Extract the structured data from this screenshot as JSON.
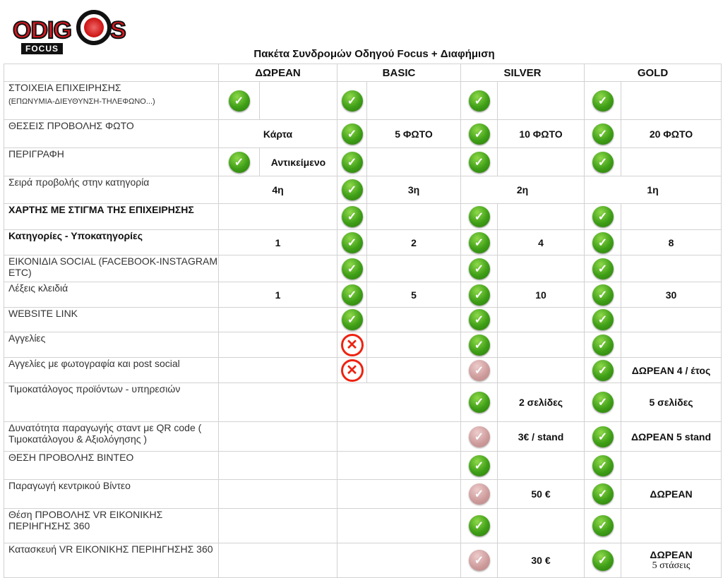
{
  "logo": {
    "text": "ODIGOS",
    "sub": "FOCUS"
  },
  "title": "Πακέτα Συνδρομών Οδηγού Focus + Διαφήμιση",
  "packages": [
    "ΔΩΡΕΑΝ",
    "BASIC",
    "SILVER",
    "GOLD"
  ],
  "icons": {
    "check": "check-circle-icon",
    "faded": "check-circle-disabled-icon",
    "cross": "x-circle-icon"
  },
  "colors": {
    "check": "#3f9f17",
    "cross": "#e21111",
    "faded": "#c99999"
  },
  "rows": [
    {
      "label": "ΣΤΟΙΧΕΙΑ ΕΠΙΧΕΙΡΗΣΗΣ",
      "sub": "(ΕΠΩΝΥΜΙΑ-ΔΙΕΥΘΥΝΣΗ-ΤΗΛΕΦΩΝΟ...)",
      "cells": [
        {
          "icon": "check",
          "value": ""
        },
        {
          "icon": "check",
          "value": ""
        },
        {
          "icon": "check",
          "value": ""
        },
        {
          "icon": "check",
          "value": ""
        }
      ]
    },
    {
      "label": "ΘΕΣΕΙΣ  ΠΡΟΒΟΛΗΣ ΦΩΤΟ",
      "cells": [
        {
          "icon": "none",
          "value": "Κάρτα"
        },
        {
          "icon": "check",
          "value": "5 ΦΩΤΟ"
        },
        {
          "icon": "check",
          "value": "10 ΦΩΤΟ"
        },
        {
          "icon": "check",
          "value": "20 ΦΩΤΟ"
        }
      ]
    },
    {
      "label": "ΠΕΡΙΓΡΑΦΗ",
      "cells": [
        {
          "icon": "check",
          "value": "Αντικείμενο"
        },
        {
          "icon": "check",
          "value": ""
        },
        {
          "icon": "check",
          "value": ""
        },
        {
          "icon": "check",
          "value": ""
        }
      ]
    },
    {
      "label": "Σειρά προβολής στην κατηγορία",
      "cells": [
        {
          "icon": "none",
          "value": "4η"
        },
        {
          "icon": "check",
          "value": "3η"
        },
        {
          "icon": "none",
          "value": "2η"
        },
        {
          "icon": "none",
          "value": "1η"
        }
      ]
    },
    {
      "label": "ΧΑΡΤΗΣ ΜΕ ΣΤΙΓΜΑ ΤΗΣ ΕΠΙΧΕΙΡΗΣΗΣ",
      "bold": true,
      "cells": [
        {
          "icon": "none",
          "value": ""
        },
        {
          "icon": "check",
          "value": ""
        },
        {
          "icon": "check",
          "value": ""
        },
        {
          "icon": "check",
          "value": ""
        }
      ]
    },
    {
      "label": "Κατηγορίες - Υποκατηγορίες",
      "bold": true,
      "cells": [
        {
          "icon": "none",
          "value": "1"
        },
        {
          "icon": "check",
          "value": "2"
        },
        {
          "icon": "check",
          "value": "4"
        },
        {
          "icon": "check",
          "value": "8"
        }
      ]
    },
    {
      "label": "ΕΙΚΟΝΙΔΙΑ SOCIAL (FACEBOOK-INSTAGRAM ETC)",
      "cells": [
        {
          "icon": "none",
          "value": ""
        },
        {
          "icon": "check",
          "value": ""
        },
        {
          "icon": "check",
          "value": ""
        },
        {
          "icon": "check",
          "value": ""
        }
      ]
    },
    {
      "label": "Λέξεις κλειδιά",
      "cells": [
        {
          "icon": "none",
          "value": "1"
        },
        {
          "icon": "check",
          "value": "5"
        },
        {
          "icon": "check",
          "value": "10"
        },
        {
          "icon": "check",
          "value": "30"
        }
      ]
    },
    {
      "label": "WEBSITE LINK",
      "cells": [
        {
          "icon": "none",
          "value": ""
        },
        {
          "icon": "check",
          "value": ""
        },
        {
          "icon": "check",
          "value": ""
        },
        {
          "icon": "check",
          "value": ""
        }
      ]
    },
    {
      "label": "Αγγελίες",
      "cells": [
        {
          "icon": "none",
          "value": ""
        },
        {
          "icon": "cross",
          "value": ""
        },
        {
          "icon": "check",
          "value": ""
        },
        {
          "icon": "check",
          "value": ""
        }
      ]
    },
    {
      "label": "Αγγελίες με φωτογραφία και post social",
      "cells": [
        {
          "icon": "none",
          "value": ""
        },
        {
          "icon": "cross",
          "value": ""
        },
        {
          "icon": "faded",
          "value": ""
        },
        {
          "icon": "check",
          "value": "ΔΩΡΕΑΝ 4 / έτος"
        }
      ]
    },
    {
      "label": "Τιμοκατάλογος προϊόντων - υπηρεσιών",
      "cells": [
        {
          "icon": "none",
          "value": ""
        },
        {
          "icon": "none",
          "value": ""
        },
        {
          "icon": "check",
          "value": "2 σελίδες"
        },
        {
          "icon": "check",
          "value": "5 σελίδες"
        }
      ]
    },
    {
      "label": "Δυνατότητα  παραγωγής σταντ με QR code ( Τιμοκατάλογου & Αξιολόγησης )",
      "cells": [
        {
          "icon": "none",
          "value": ""
        },
        {
          "icon": "none",
          "value": ""
        },
        {
          "icon": "faded",
          "value": "3€ / stand"
        },
        {
          "icon": "check",
          "value": "ΔΩΡΕΑΝ 5 stand"
        }
      ]
    },
    {
      "label": "ΘΕΣΗ ΠΡΟΒΟΛΗΣ ΒΙΝΤΕΟ",
      "cells": [
        {
          "icon": "none",
          "value": ""
        },
        {
          "icon": "none",
          "value": ""
        },
        {
          "icon": "check",
          "value": ""
        },
        {
          "icon": "check",
          "value": ""
        }
      ]
    },
    {
      "label": "Παραγωγή κεντρικού  Βίντεο",
      "cells": [
        {
          "icon": "none",
          "value": ""
        },
        {
          "icon": "none",
          "value": ""
        },
        {
          "icon": "faded",
          "value": "50 €"
        },
        {
          "icon": "check",
          "value": "ΔΩΡΕΑΝ"
        }
      ]
    },
    {
      "label": "Θέση ΠΡΟΒΟΛΗΣ VR ΕΙΚΟΝΙΚΗΣ ΠΕΡΙΗΓΗΣΗΣ 360",
      "cells": [
        {
          "icon": "none",
          "value": ""
        },
        {
          "icon": "none",
          "value": ""
        },
        {
          "icon": "check",
          "value": ""
        },
        {
          "icon": "check",
          "value": ""
        }
      ]
    },
    {
      "label": "Κατασκευή VR ΕΙΚΟΝΙΚΗΣ ΠΕΡΙΗΓΗΣΗΣ 360",
      "cells": [
        {
          "icon": "none",
          "value": ""
        },
        {
          "icon": "none",
          "value": ""
        },
        {
          "icon": "faded",
          "value": "30 €"
        },
        {
          "icon": "check",
          "value": "ΔΩΡΕΑΝ",
          "value2": "5 στάσεις"
        }
      ]
    }
  ]
}
